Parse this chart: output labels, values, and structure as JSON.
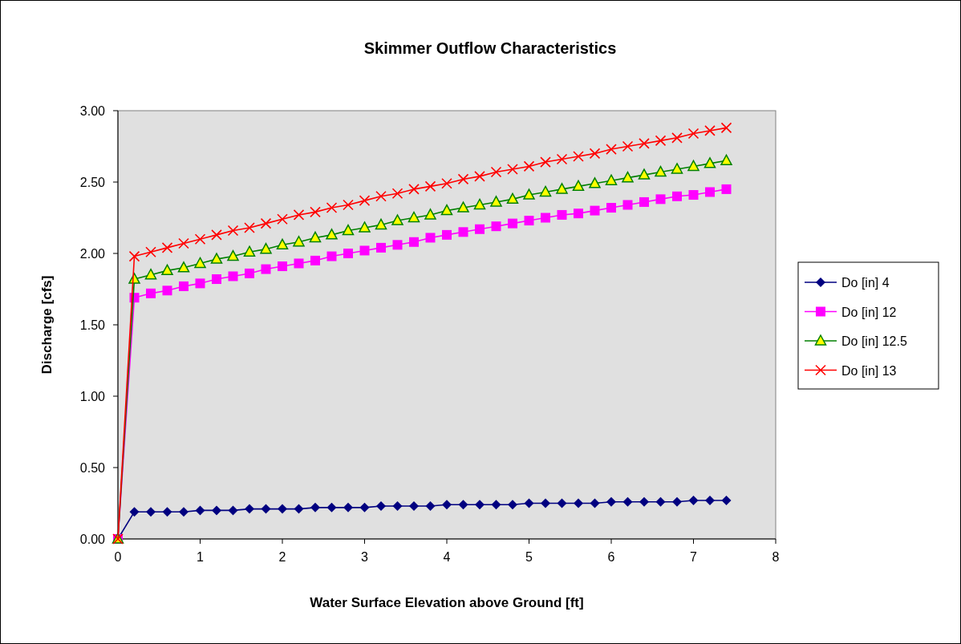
{
  "chart_data": {
    "type": "line",
    "title": "Skimmer Outflow Characteristics",
    "xlabel": "Water Surface Elevation above Ground [ft]",
    "ylabel": "Discharge [cfs]",
    "x": [
      0,
      0.2,
      0.4,
      0.6,
      0.8,
      1.0,
      1.2,
      1.4,
      1.6,
      1.8,
      2.0,
      2.2,
      2.4,
      2.6,
      2.8,
      3.0,
      3.2,
      3.4,
      3.6,
      3.8,
      4.0,
      4.2,
      4.4,
      4.6,
      4.8,
      5.0,
      5.2,
      5.4,
      5.6,
      5.8,
      6.0,
      6.2,
      6.4,
      6.6,
      6.8,
      7.0,
      7.2,
      7.4
    ],
    "series": [
      {
        "name": "Do [in] 4",
        "color": "#000080",
        "marker": "diamond",
        "values": [
          0,
          0.19,
          0.19,
          0.19,
          0.19,
          0.2,
          0.2,
          0.2,
          0.21,
          0.21,
          0.21,
          0.21,
          0.22,
          0.22,
          0.22,
          0.22,
          0.23,
          0.23,
          0.23,
          0.23,
          0.24,
          0.24,
          0.24,
          0.24,
          0.24,
          0.25,
          0.25,
          0.25,
          0.25,
          0.25,
          0.26,
          0.26,
          0.26,
          0.26,
          0.26,
          0.27,
          0.27,
          0.27
        ]
      },
      {
        "name": "Do [in] 12",
        "color": "#ff00ff",
        "marker": "square",
        "values": [
          0,
          1.69,
          1.72,
          1.74,
          1.77,
          1.79,
          1.82,
          1.84,
          1.86,
          1.89,
          1.91,
          1.93,
          1.95,
          1.98,
          2.0,
          2.02,
          2.04,
          2.06,
          2.08,
          2.11,
          2.13,
          2.15,
          2.17,
          2.19,
          2.21,
          2.23,
          2.25,
          2.27,
          2.28,
          2.3,
          2.32,
          2.34,
          2.36,
          2.38,
          2.4,
          2.41,
          2.43,
          2.45
        ]
      },
      {
        "name": "Do [in] 12.5",
        "color": "#008000",
        "marker": "triangle",
        "values": [
          0,
          1.82,
          1.85,
          1.88,
          1.9,
          1.93,
          1.96,
          1.98,
          2.01,
          2.03,
          2.06,
          2.08,
          2.11,
          2.13,
          2.16,
          2.18,
          2.2,
          2.23,
          2.25,
          2.27,
          2.3,
          2.32,
          2.34,
          2.36,
          2.38,
          2.41,
          2.43,
          2.45,
          2.47,
          2.49,
          2.51,
          2.53,
          2.55,
          2.57,
          2.59,
          2.61,
          2.63,
          2.65
        ]
      },
      {
        "name": "Do [in] 13",
        "color": "#ff0000",
        "marker": "cross",
        "values": [
          0,
          1.98,
          2.01,
          2.04,
          2.07,
          2.1,
          2.13,
          2.16,
          2.18,
          2.21,
          2.24,
          2.27,
          2.29,
          2.32,
          2.34,
          2.37,
          2.4,
          2.42,
          2.45,
          2.47,
          2.49,
          2.52,
          2.54,
          2.57,
          2.59,
          2.61,
          2.64,
          2.66,
          2.68,
          2.7,
          2.73,
          2.75,
          2.77,
          2.79,
          2.81,
          2.84,
          2.86,
          2.88
        ]
      }
    ],
    "xlim": [
      0,
      8
    ],
    "xticks": [
      0,
      1,
      2,
      3,
      4,
      5,
      6,
      7,
      8
    ],
    "ylim": [
      0,
      3
    ],
    "yticks": [
      {
        "value": 0,
        "label": "0.00"
      },
      {
        "value": 0.5,
        "label": "0.50"
      },
      {
        "value": 1,
        "label": "1.00"
      },
      {
        "value": 1.5,
        "label": "1.50"
      },
      {
        "value": 2,
        "label": "2.00"
      },
      {
        "value": 2.5,
        "label": "2.50"
      },
      {
        "value": 3,
        "label": "3.00"
      }
    ],
    "grid": false,
    "legend": "right"
  }
}
